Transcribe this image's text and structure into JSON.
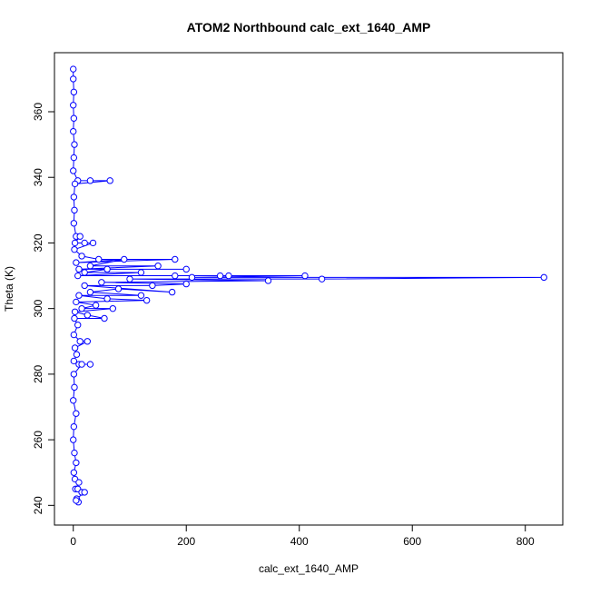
{
  "chart_data": {
    "type": "line_points",
    "title": "ATOM2 Northbound calc_ext_1640_AMP",
    "x_label": "calc_ext_1640_AMP",
    "y_label": "Theta (K)",
    "color": "#0000ff",
    "xlim": [
      -33.3,
      866.3
    ],
    "ylim": [
      234,
      378
    ],
    "xticks": [
      0,
      200,
      400,
      600,
      800
    ],
    "yticks": [
      240,
      260,
      280,
      300,
      320,
      340,
      360
    ],
    "series": [
      {
        "x": [
          0,
          0,
          1,
          0,
          1,
          0,
          2,
          1,
          0,
          8,
          30,
          65,
          3,
          1,
          2,
          1,
          5,
          12,
          3,
          20,
          35,
          2,
          15,
          45,
          180,
          5,
          90,
          30,
          150,
          10,
          200,
          60,
          20,
          120,
          8,
          180,
          260,
          275,
          410,
          210,
          833,
          440,
          100,
          345,
          50,
          200,
          140,
          20,
          175,
          80,
          30,
          120,
          10,
          60,
          130,
          5,
          40,
          15,
          70,
          3,
          25,
          55,
          2,
          8,
          1,
          12,
          25,
          3,
          6,
          1,
          10,
          30,
          15,
          1,
          2,
          0,
          5,
          1,
          0,
          2,
          5,
          1,
          3,
          10,
          4,
          8,
          15,
          20,
          6,
          9,
          5
        ],
        "values": [
          373,
          370,
          366,
          362,
          358,
          354,
          350,
          346,
          342,
          339,
          339,
          339,
          338,
          334,
          330,
          326,
          322,
          322,
          320,
          320,
          320,
          318,
          316,
          315,
          315,
          314,
          315,
          313,
          313,
          312,
          312,
          312,
          311,
          311,
          310,
          310,
          310,
          310,
          310,
          309.5,
          309.5,
          309,
          309,
          308.5,
          308,
          307.5,
          307,
          307,
          305,
          306,
          305,
          304,
          304,
          303,
          302.5,
          302,
          301,
          300,
          300,
          299,
          298,
          297,
          297,
          295,
          292,
          290,
          290,
          288,
          286,
          284,
          283,
          283,
          283,
          280,
          276,
          272,
          268,
          264,
          260,
          256,
          253,
          250,
          248,
          247,
          245,
          245,
          244,
          244,
          242,
          241,
          241.5
        ]
      }
    ]
  }
}
